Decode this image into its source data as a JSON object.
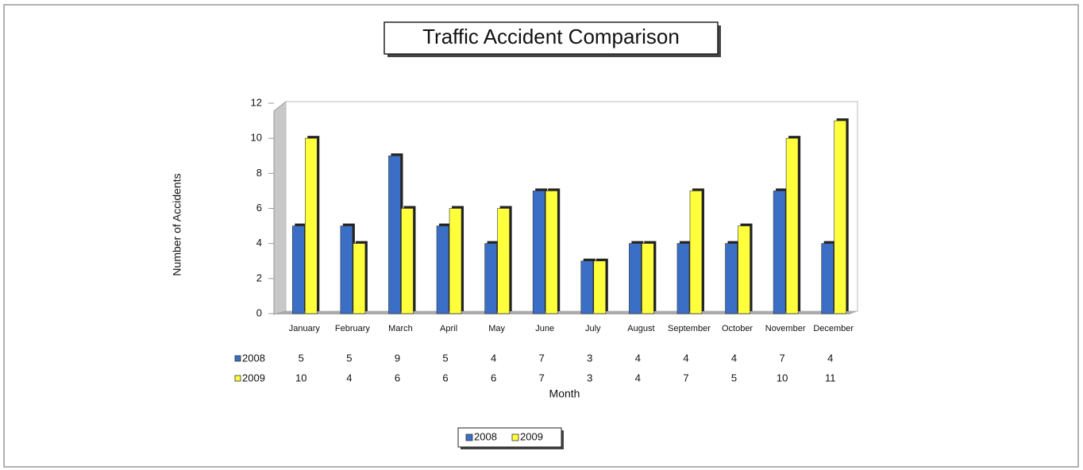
{
  "chart_data": {
    "type": "bar",
    "title": "Traffic Accident Comparison",
    "x_label": "Month",
    "y_label": "Number of Accidents",
    "categories": [
      "January",
      "February",
      "March",
      "April",
      "May",
      "June",
      "July",
      "August",
      "September",
      "October",
      "November",
      "December"
    ],
    "series": [
      {
        "name": "2008",
        "color": "#3b6fc6",
        "values": [
          5,
          5,
          9,
          5,
          4,
          7,
          3,
          4,
          4,
          4,
          7,
          4
        ]
      },
      {
        "name": "2009",
        "color": "#ffff3c",
        "values": [
          10,
          4,
          6,
          6,
          6,
          7,
          3,
          4,
          7,
          5,
          10,
          11
        ]
      }
    ],
    "ylim": [
      0,
      12
    ],
    "yticks": [
      0,
      2,
      4,
      6,
      8,
      10,
      12
    ],
    "legend": "bottom"
  }
}
